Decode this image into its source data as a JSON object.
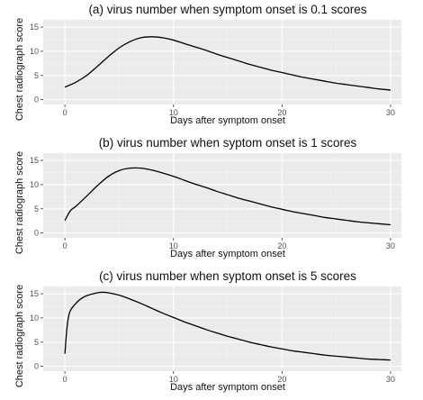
{
  "chart_data": [
    {
      "type": "line",
      "title": "(a) virus number when symptom onset is 0.1 scores",
      "xlabel": "Days after symptom onset",
      "ylabel": "Chest radiograph score",
      "xlim": [
        -2,
        31
      ],
      "ylim": [
        -1,
        16.5
      ],
      "xticks": [
        0,
        10,
        20,
        30
      ],
      "yticks": [
        0,
        5,
        10,
        15
      ],
      "grid": true,
      "series": [
        {
          "x": [
            0,
            1,
            2,
            3,
            4,
            5,
            6,
            7,
            8,
            9,
            10,
            11,
            12,
            13,
            14,
            15,
            16,
            17,
            18,
            19,
            20,
            21,
            22,
            23,
            24,
            25,
            26,
            27,
            28,
            29,
            30
          ],
          "y": [
            2.6,
            3.6,
            5.0,
            6.9,
            8.9,
            10.7,
            12.0,
            12.8,
            13.0,
            12.8,
            12.3,
            11.6,
            10.9,
            10.2,
            9.4,
            8.7,
            8.0,
            7.3,
            6.7,
            6.1,
            5.6,
            5.1,
            4.6,
            4.2,
            3.8,
            3.4,
            3.1,
            2.8,
            2.5,
            2.2,
            2.0
          ]
        }
      ]
    },
    {
      "type": "line",
      "title": "(b) virus number when syptom onset is 1 scores",
      "xlabel": "Days after symptom onset",
      "ylabel": "Chest radiograph score",
      "xlim": [
        -2,
        31
      ],
      "ylim": [
        -1,
        16.5
      ],
      "xticks": [
        0,
        10,
        20,
        30
      ],
      "yticks": [
        0,
        5,
        10,
        15
      ],
      "grid": true,
      "series": [
        {
          "x": [
            0,
            0.5,
            1,
            2,
            3,
            4,
            5,
            6,
            7,
            8,
            9,
            10,
            11,
            12,
            13,
            14,
            15,
            16,
            17,
            18,
            19,
            20,
            21,
            22,
            23,
            24,
            25,
            26,
            27,
            28,
            29,
            30
          ],
          "y": [
            2.6,
            4.6,
            5.5,
            7.6,
            9.8,
            11.7,
            12.9,
            13.4,
            13.4,
            13.0,
            12.4,
            11.7,
            10.9,
            10.1,
            9.4,
            8.6,
            7.9,
            7.2,
            6.6,
            6.0,
            5.4,
            4.9,
            4.4,
            4.0,
            3.6,
            3.2,
            2.9,
            2.6,
            2.3,
            2.1,
            1.9,
            1.7
          ]
        }
      ]
    },
    {
      "type": "line",
      "title": "(c) virus number when syptom onset is 5 scores",
      "xlabel": "Days after symptom onset",
      "ylabel": "Chest radiograph score",
      "xlim": [
        -2,
        31
      ],
      "ylim": [
        -1,
        16.5
      ],
      "xticks": [
        0,
        10,
        20,
        30
      ],
      "yticks": [
        0,
        5,
        10,
        15
      ],
      "grid": true,
      "series": [
        {
          "x": [
            0,
            0.15,
            0.3,
            0.5,
            1,
            1.5,
            2,
            3,
            3.5,
            4,
            5,
            6,
            7,
            8,
            9,
            10,
            11,
            12,
            13,
            14,
            15,
            16,
            17,
            18,
            19,
            20,
            21,
            22,
            23,
            24,
            25,
            26,
            27,
            28,
            29,
            30
          ],
          "y": [
            2.6,
            7.0,
            9.8,
            11.5,
            13.0,
            14.0,
            14.6,
            15.2,
            15.3,
            15.2,
            14.7,
            13.9,
            13.0,
            12.0,
            11.0,
            10.1,
            9.2,
            8.4,
            7.6,
            6.9,
            6.2,
            5.6,
            5.0,
            4.5,
            4.0,
            3.6,
            3.2,
            2.9,
            2.6,
            2.3,
            2.1,
            1.9,
            1.7,
            1.5,
            1.4,
            1.3
          ]
        }
      ]
    }
  ]
}
